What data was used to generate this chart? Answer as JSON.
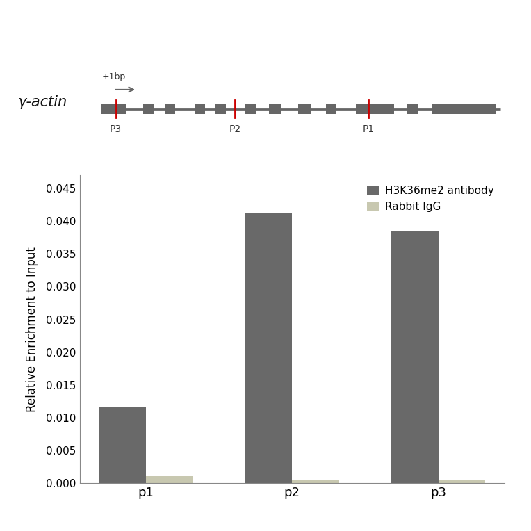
{
  "categories": [
    "p1",
    "p2",
    "p3"
  ],
  "antibody_values": [
    0.01165,
    0.04115,
    0.03855
  ],
  "igg_values": [
    0.00105,
    0.00055,
    0.0006
  ],
  "antibody_color": "#696969",
  "igg_color": "#c8c8b0",
  "ylabel": "Relative Enrichment to Input",
  "ylim": [
    0,
    0.047
  ],
  "yticks": [
    0.0,
    0.005,
    0.01,
    0.015,
    0.02,
    0.025,
    0.03,
    0.035,
    0.04,
    0.045
  ],
  "legend_labels": [
    "H3K36me2 antibody",
    "Rabbit IgG"
  ],
  "bar_width": 0.32,
  "gene_label": "γ-actin",
  "gene_label_fontsize": 15,
  "annotation_label": "+1bp",
  "p_labels": [
    "P3",
    "P2",
    "P1"
  ],
  "background_color": "#ffffff",
  "exon_color": "#666666",
  "line_color": "#666666",
  "red_tick_color": "#cc0000",
  "p_label_color": "#333333",
  "arrow_color": "#666666"
}
